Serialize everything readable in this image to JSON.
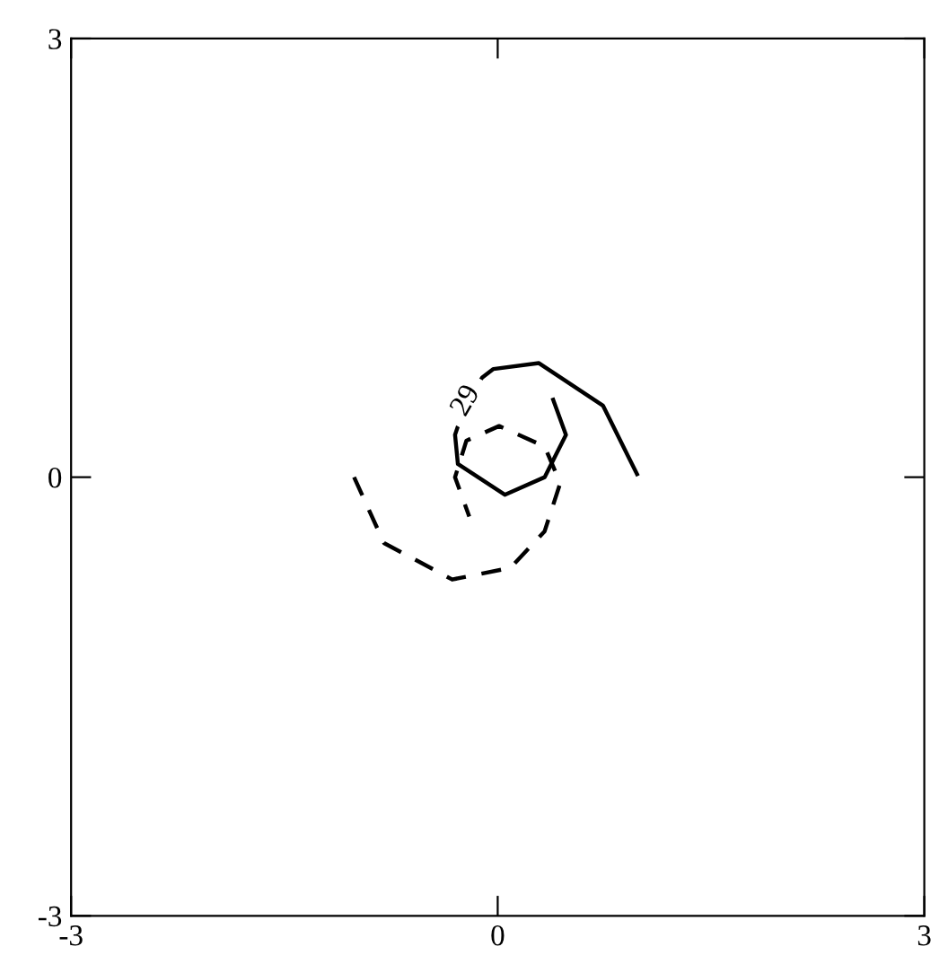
{
  "chart_data": {
    "type": "line",
    "xlim": [
      -3,
      3
    ],
    "ylim": [
      -3,
      3
    ],
    "xticks": [
      -3,
      0,
      3
    ],
    "yticks": [
      -3,
      0,
      3
    ],
    "grid": false,
    "legend": false,
    "marker": "none",
    "series": [
      {
        "color": "#000000",
        "line_style": "solid",
        "x": [
          0.98,
          0.74,
          0.29,
          -0.03,
          -0.11,
          -0.22,
          -0.3,
          -0.28,
          0.05,
          0.33,
          0.48,
          0.39
        ],
        "values": [
          0.02,
          0.49,
          0.78,
          0.74,
          0.68,
          0.52,
          0.29,
          0.09,
          -0.12,
          0,
          0.29,
          0.53
        ]
      },
      {
        "color": "#000000",
        "line_style": "dashed",
        "x": [
          -1.01,
          -0.8,
          -0.32,
          0.09,
          0.33,
          0.44,
          0.33,
          0.01,
          -0.22,
          -0.3,
          -0.2
        ],
        "values": [
          0.0,
          -0.45,
          -0.7,
          -0.62,
          -0.37,
          -0.04,
          0.21,
          0.35,
          0.25,
          0,
          -0.27
        ]
      }
    ],
    "annotations": [
      {
        "text": "29",
        "x": -0.22,
        "y": 0.52
      }
    ]
  }
}
